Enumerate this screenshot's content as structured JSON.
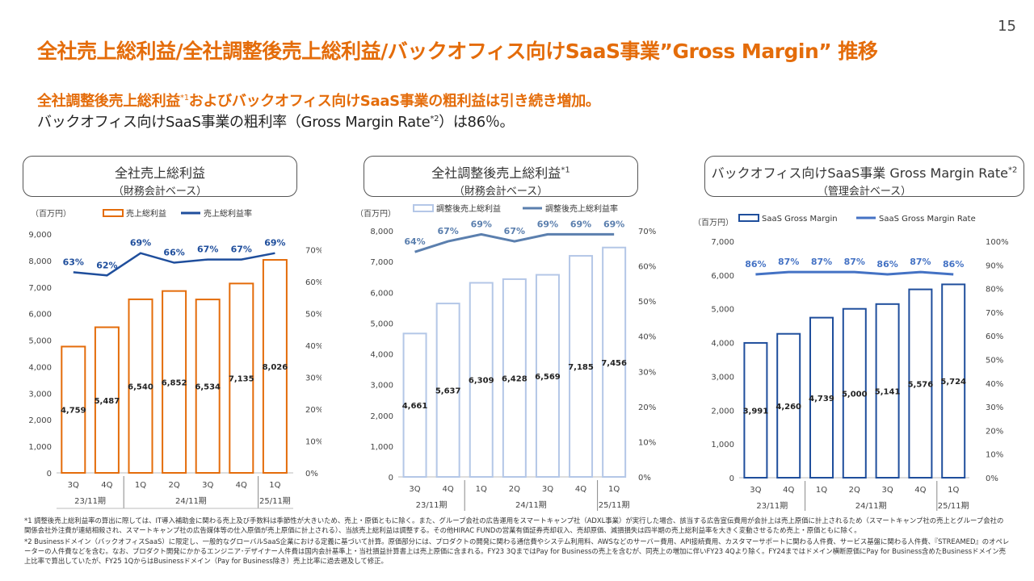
{
  "page_number": "15",
  "title": "全社売上総利益/全社調整後売上総利益/バックオフィス向けSaaS事業”Gross Margin” 推移",
  "subtitle": {
    "line1": "全社調整後売上総利益",
    "line1_sup": "*1",
    "line1_rest": "およびバックオフィス向けSaaS事業の粗利益は引き続き増加。",
    "line2": "バックオフィス向けSaaS事業の粗利率（Gross Margin Rate",
    "line2_sup": "*2",
    "line2_rest": "）は86％。"
  },
  "charts_meta": [
    {
      "header": "全社売上総利益",
      "header_sup": "",
      "sub": "（財務会計ベース）"
    },
    {
      "header": "全社調整後売上総利益",
      "header_sup": "*1",
      "sub": "（財務会計ベース）"
    },
    {
      "header": "バックオフィス向けSaaS事業 Gross Margin Rate",
      "header_sup": "*2",
      "sub": "（管理会計ベース）"
    }
  ],
  "chart_data": [
    {
      "type": "bar",
      "unit": "（百万円）",
      "categories": [
        "3Q",
        "4Q",
        "1Q",
        "2Q",
        "3Q",
        "4Q",
        "1Q"
      ],
      "periods": [
        "23/11期",
        "24/11期",
        "25/11期"
      ],
      "series": [
        {
          "name": "売上総利益",
          "kind": "bar",
          "values": [
            4759,
            5487,
            6540,
            6852,
            6534,
            7135,
            8026
          ],
          "labels": [
            "4,759",
            "5,487",
            "6,540",
            "6,852",
            "6,534",
            "7,135",
            "8,026"
          ]
        },
        {
          "name": "売上総利益率",
          "kind": "line",
          "values": [
            63,
            62,
            69,
            66,
            67,
            67,
            69
          ],
          "labels": [
            "63%",
            "62%",
            "69%",
            "66%",
            "67%",
            "67%",
            "69%"
          ]
        }
      ],
      "ylim": [
        0,
        9000
      ],
      "y_ticks": [
        "0",
        "1,000",
        "2,000",
        "3,000",
        "4,000",
        "5,000",
        "6,000",
        "7,000",
        "8,000",
        "9,000"
      ],
      "y2lim": [
        0,
        75
      ],
      "y2_ticks": [
        "0%",
        "10%",
        "20%",
        "30%",
        "40%",
        "50%",
        "60%",
        "70%"
      ],
      "colors": {
        "bar": "#e46c0a",
        "bar_fill": "#ffffff",
        "line": "#1f4e9c"
      }
    },
    {
      "type": "bar",
      "unit": "（百万円）",
      "categories": [
        "3Q",
        "4Q",
        "1Q",
        "2Q",
        "3Q",
        "4Q",
        "1Q"
      ],
      "periods": [
        "23/11期",
        "24/11期",
        "25/11期"
      ],
      "series": [
        {
          "name": "調整後売上総利益",
          "kind": "bar",
          "values": [
            4661,
            5637,
            6309,
            6428,
            6569,
            7185,
            7456
          ],
          "labels": [
            "4,661",
            "5,637",
            "6,309",
            "6,428",
            "6,569",
            "7,185",
            "7,456"
          ]
        },
        {
          "name": "調整後売上総利益率",
          "kind": "line",
          "values": [
            64,
            67,
            69,
            67,
            69,
            69,
            69
          ],
          "labels": [
            "64%",
            "67%",
            "69%",
            "67%",
            "69%",
            "69%",
            "69%"
          ]
        }
      ],
      "ylim": [
        0,
        8000
      ],
      "y_ticks": [
        "0",
        "1,000",
        "2,000",
        "3,000",
        "4,000",
        "5,000",
        "6,000",
        "7,000",
        "8,000"
      ],
      "y2lim": [
        0,
        70
      ],
      "y2_ticks": [
        "0%",
        "10%",
        "20%",
        "30%",
        "40%",
        "50%",
        "60%",
        "70%"
      ],
      "colors": {
        "bar": "#b4c7e7",
        "bar_fill": "#ffffff",
        "line": "#5b7fae"
      }
    },
    {
      "type": "bar",
      "unit": "（百万円）",
      "categories": [
        "3Q",
        "4Q",
        "1Q",
        "2Q",
        "3Q",
        "4Q",
        "1Q"
      ],
      "periods": [
        "23/11期",
        "24/11期",
        "25/11期"
      ],
      "series": [
        {
          "name": "SaaS Gross Margin",
          "kind": "bar",
          "values": [
            3991,
            4260,
            4739,
            5000,
            5141,
            5576,
            5724
          ],
          "labels": [
            "3,991",
            "4,260",
            "4,739",
            "5,000",
            "5,141",
            "5,576",
            "5,724"
          ]
        },
        {
          "name": "SaaS Gross Margin Rate",
          "kind": "line",
          "values": [
            86,
            87,
            87,
            87,
            86,
            87,
            86
          ],
          "labels": [
            "86%",
            "87%",
            "87%",
            "87%",
            "86%",
            "87%",
            "86%"
          ]
        }
      ],
      "ylim": [
        0,
        7000
      ],
      "y_ticks": [
        "0",
        "1,000",
        "2,000",
        "3,000",
        "4,000",
        "5,000",
        "6,000",
        "7,000"
      ],
      "y2lim": [
        0,
        100
      ],
      "y2_ticks": [
        "0%",
        "10%",
        "20%",
        "30%",
        "40%",
        "50%",
        "60%",
        "70%",
        "80%",
        "90%",
        "100%"
      ],
      "colors": {
        "bar": "#1f4e9c",
        "bar_fill": "#ffffff",
        "line": "#4472c4"
      }
    }
  ],
  "footnotes": [
    "*1 調整後売上総利益率の算出に際しては、IT導入補助金に関わる売上及び手数料は季節性が大きいため、売上・原価ともに除く。また、グループ会社の広告運用をスマートキャンプ社（ADXL事業）が実行した場合、該当する広告宣伝費用が会計上は売上原価に計上されるため（スマートキャンプ社の売上とグループ会社の関係会社外注費が連結相殺され、スマートキャンプ社の広告媒体等の仕入原価が売上原価に計上される）、当該売上総利益は調整する。その他HIRAC FUNDの営業有価証券売却収入、売却原価、減損損失は四半期の売上総利益率を大きく変動させるため売上・原価ともに除く。",
    "*2 Businessドメイン（バックオフィスSaaS）に限定し、一般的なグローバルSaaS企業における定義に基づいて計算。原価部分には、プロダクトの開発に関わる通信費やシステム利用料、AWSなどのサーバー費用、API接続費用、カスタマーサポートに関わる人件費、サービス基盤に関わる人件費、『STREAMED』のオペレーターの人件費などを含む。なお、プロダクト開発にかかるエンジニア･デザイナー人件費は国内会計基準上・当社損益計算書上は売上原価に含まれる。FY23 3QまではPay for Businessの売上を含むが、同売上の増加に伴いFY23 4Qより除く。FY24まではドメイン横断原価にPay for Business含めたBusinessドメイン売上比率で算出していたが、FY25 1QからはBusinessドメイン（Pay for Business除き）売上比率に過去遡及して修正。"
  ]
}
